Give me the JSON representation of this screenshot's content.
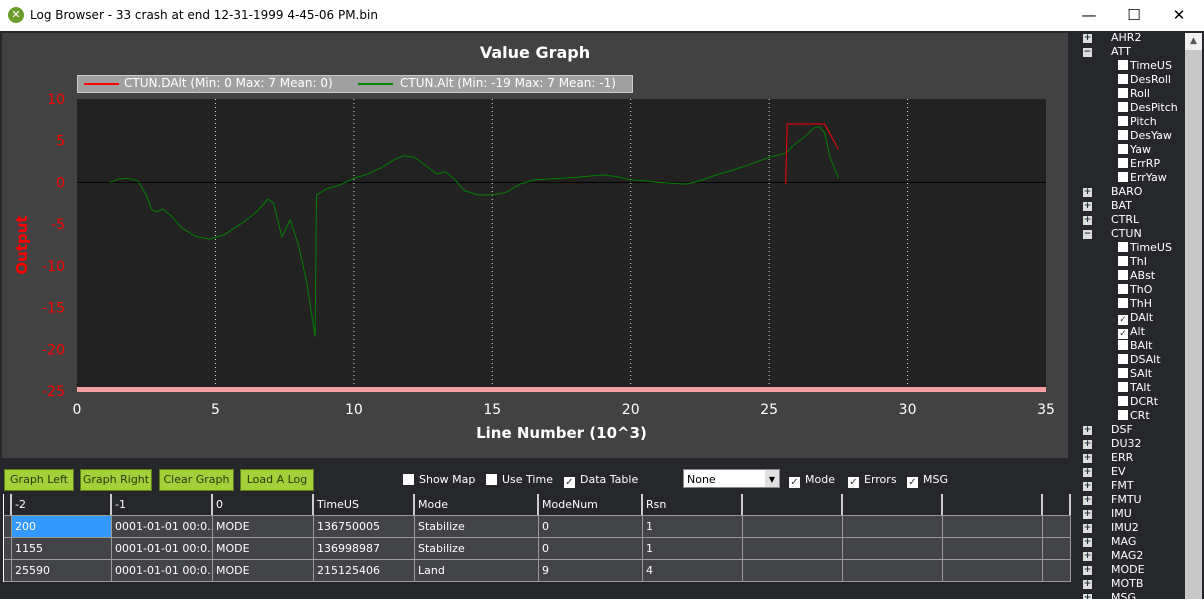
{
  "window": {
    "title": "Log Browser - 33  crash at end 12-31-1999 4-45-06 PM.bin",
    "controls": [
      "minimize",
      "maximize",
      "close"
    ]
  },
  "graph": {
    "title": "Value Graph"
  },
  "chart_data": {
    "type": "line",
    "title": "Value Graph",
    "xlabel": "Line Number (10^3)",
    "ylabel": "Output",
    "xlim": [
      0,
      35
    ],
    "ylim": [
      -25,
      10
    ],
    "xticks": [
      0,
      5,
      10,
      15,
      20,
      25,
      30,
      35
    ],
    "yticks": [
      10,
      5,
      0,
      -5,
      -10,
      -15,
      -20,
      -25
    ],
    "grid": true,
    "legend_position": "top-left",
    "series": [
      {
        "name": "CTUN.DAlt (Min: 0 Max: 7 Mean: 0)",
        "color": "#ff0000",
        "x": [
          25.6,
          25.65,
          27.0,
          27.5
        ],
        "y": [
          -0.2,
          7,
          7,
          4
        ]
      },
      {
        "name": "CTUN.Alt (Min: -19 Max: 7 Mean: -1)",
        "color": "#008000",
        "x": [
          1.2,
          1.5,
          1.8,
          2.2,
          2.5,
          2.7,
          2.9,
          3.1,
          3.4,
          3.8,
          4.3,
          4.8,
          5.3,
          6,
          6.5,
          6.9,
          7.1,
          7.4,
          7.7,
          8.0,
          8.3,
          8.6,
          8.65,
          9,
          9.5,
          10,
          10.5,
          11,
          11.5,
          11.8,
          12.2,
          12.6,
          13,
          13.3,
          13.6,
          14,
          14.5,
          15,
          15.5,
          16,
          16.5,
          17,
          18,
          19,
          19.5,
          20,
          20.5,
          21,
          22,
          22.5,
          23,
          24,
          25,
          25.6,
          25.9,
          26.3,
          26.6,
          26.8,
          27.0,
          27.2,
          27.5
        ],
        "y": [
          0,
          0.4,
          0.5,
          0.2,
          -1.5,
          -3.3,
          -3.5,
          -3.2,
          -4,
          -5.5,
          -6.5,
          -6.8,
          -6.3,
          -4.8,
          -3.5,
          -2,
          -2.5,
          -6.5,
          -4.5,
          -7.5,
          -12,
          -18.5,
          -1.5,
          -0.8,
          -0.3,
          0.5,
          1,
          1.8,
          2.8,
          3.2,
          3,
          2,
          1,
          1.3,
          0.5,
          -1,
          -1.5,
          -1.5,
          -1.2,
          -0.2,
          0.3,
          0.4,
          0.6,
          0.9,
          0.7,
          0.3,
          0.2,
          0,
          -0.2,
          0.2,
          0.8,
          1.8,
          3,
          3.5,
          4.5,
          5.5,
          6.5,
          6.7,
          6,
          3,
          0.5
        ]
      }
    ]
  },
  "toolbar": {
    "buttons": [
      "Graph Left",
      "Graph Right",
      "Clear Graph",
      "Load A Log"
    ],
    "checkboxes": [
      {
        "label": "Show Map",
        "checked": false
      },
      {
        "label": "Use Time",
        "checked": false
      },
      {
        "label": "Data Table",
        "checked": true
      },
      {
        "label": "Mode",
        "checked": true
      },
      {
        "label": "Errors",
        "checked": true
      },
      {
        "label": "MSG",
        "checked": true
      }
    ],
    "select": "None"
  },
  "table": {
    "headers": [
      "-2",
      "-1",
      "0",
      "TimeUS",
      "Mode",
      "ModeNum",
      "Rsn",
      "",
      "",
      "",
      ""
    ],
    "rows": [
      [
        "200",
        "0001-01-01 00:0...",
        "MODE",
        "136750005",
        "Stabilize",
        "0",
        "1",
        "",
        "",
        "",
        ""
      ],
      [
        "1155",
        "0001-01-01 00:0...",
        "MODE",
        "136998987",
        "Stabilize",
        "0",
        "1",
        "",
        "",
        "",
        ""
      ],
      [
        "25590",
        "0001-01-01 00:0...",
        "MODE",
        "215125406",
        "Land",
        "9",
        "4",
        "",
        "",
        "",
        ""
      ]
    ]
  },
  "tree": [
    {
      "label": "AHR2",
      "type": "group",
      "expanded": false
    },
    {
      "label": "ATT",
      "type": "group",
      "expanded": true
    },
    {
      "label": "TimeUS",
      "type": "field"
    },
    {
      "label": "DesRoll",
      "type": "field"
    },
    {
      "label": "Roll",
      "type": "field"
    },
    {
      "label": "DesPitch",
      "type": "field"
    },
    {
      "label": "Pitch",
      "type": "field"
    },
    {
      "label": "DesYaw",
      "type": "field"
    },
    {
      "label": "Yaw",
      "type": "field"
    },
    {
      "label": "ErrRP",
      "type": "field"
    },
    {
      "label": "ErrYaw",
      "type": "field"
    },
    {
      "label": "BARO",
      "type": "group",
      "expanded": false
    },
    {
      "label": "BAT",
      "type": "group",
      "expanded": false
    },
    {
      "label": "CTRL",
      "type": "group",
      "expanded": false
    },
    {
      "label": "CTUN",
      "type": "group",
      "expanded": true
    },
    {
      "label": "TimeUS",
      "type": "field"
    },
    {
      "label": "ThI",
      "type": "field"
    },
    {
      "label": "ABst",
      "type": "field"
    },
    {
      "label": "ThO",
      "type": "field"
    },
    {
      "label": "ThH",
      "type": "field"
    },
    {
      "label": "DAlt",
      "type": "field",
      "checked": true
    },
    {
      "label": "Alt",
      "type": "field",
      "checked": true
    },
    {
      "label": "BAlt",
      "type": "field"
    },
    {
      "label": "DSAlt",
      "type": "field"
    },
    {
      "label": "SAlt",
      "type": "field"
    },
    {
      "label": "TAlt",
      "type": "field"
    },
    {
      "label": "DCRt",
      "type": "field"
    },
    {
      "label": "CRt",
      "type": "field"
    },
    {
      "label": "DSF",
      "type": "group"
    },
    {
      "label": "DU32",
      "type": "group"
    },
    {
      "label": "ERR",
      "type": "group"
    },
    {
      "label": "EV",
      "type": "group"
    },
    {
      "label": "FMT",
      "type": "group"
    },
    {
      "label": "FMTU",
      "type": "group"
    },
    {
      "label": "IMU",
      "type": "group"
    },
    {
      "label": "IMU2",
      "type": "group"
    },
    {
      "label": "MAG",
      "type": "group"
    },
    {
      "label": "MAG2",
      "type": "group"
    },
    {
      "label": "MODE",
      "type": "group"
    },
    {
      "label": "MOTB",
      "type": "group"
    },
    {
      "label": "MSG",
      "type": "group"
    }
  ]
}
